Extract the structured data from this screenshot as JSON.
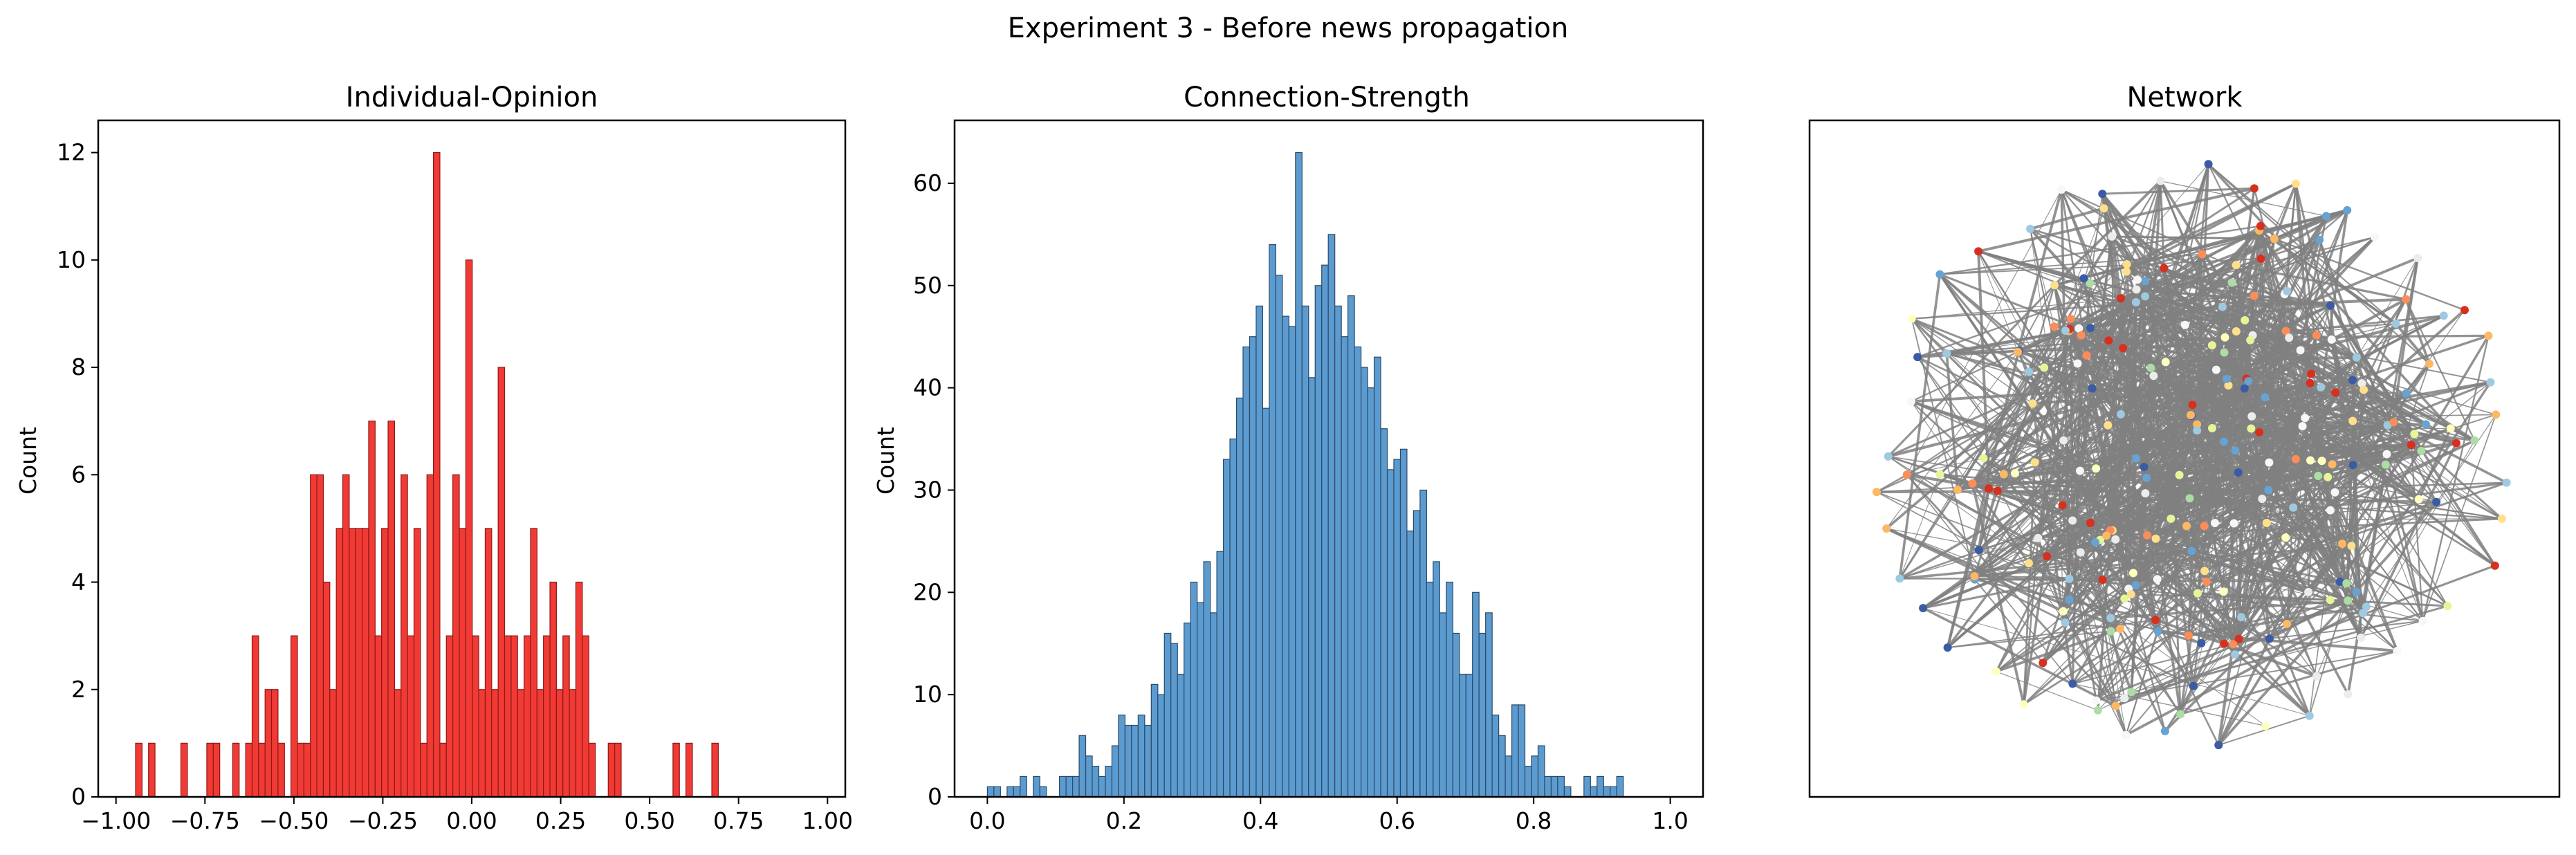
{
  "suptitle": "Experiment 3 - Before news propagation",
  "chart_data": [
    {
      "type": "histogram",
      "title": "Individual-Opinion",
      "xlabel": "",
      "ylabel": "Count",
      "xlim": [
        -1.05,
        1.05
      ],
      "ylim": [
        0,
        12.6
      ],
      "xticks": [
        -1.0,
        -0.75,
        -0.5,
        -0.25,
        0.0,
        0.25,
        0.5,
        0.75,
        1.0
      ],
      "xtick_labels": [
        "−1.00",
        "−0.75",
        "−0.50",
        "−0.25",
        "0.00",
        "0.25",
        "0.50",
        "0.75",
        "1.00"
      ],
      "yticks": [
        0,
        2,
        4,
        6,
        8,
        10,
        12
      ],
      "ytick_labels": [
        "0",
        "2",
        "4",
        "6",
        "8",
        "10",
        "12"
      ],
      "bin_start": -0.945,
      "bin_width": 0.0182,
      "values": [
        1,
        0,
        1,
        0,
        0,
        0,
        0,
        1,
        0,
        0,
        0,
        1,
        1,
        0,
        0,
        1,
        0,
        1,
        3,
        1,
        2,
        2,
        1,
        0,
        3,
        1,
        1,
        6,
        6,
        4,
        2,
        5,
        6,
        5,
        5,
        5,
        7,
        3,
        5,
        7,
        2,
        6,
        3,
        5,
        1,
        6,
        12,
        1,
        3,
        6,
        5,
        10,
        3,
        2,
        5,
        2,
        8,
        3,
        3,
        2,
        3,
        5,
        2,
        3,
        4,
        2,
        3,
        2,
        4,
        3,
        1,
        0,
        0,
        1,
        1,
        0,
        0,
        0,
        0,
        0,
        0,
        0,
        0,
        1,
        0,
        1,
        0,
        0,
        0,
        1
      ],
      "colors": {
        "fill": "#f23a35",
        "edge": "#8b1a17"
      }
    },
    {
      "type": "histogram",
      "title": "Connection-Strength",
      "xlabel": "",
      "ylabel": "Count",
      "xlim": [
        -0.048,
        1.048
      ],
      "ylim": [
        0,
        66.15
      ],
      "xticks": [
        0.0,
        0.2,
        0.4,
        0.6,
        0.8,
        1.0
      ],
      "xtick_labels": [
        "0.0",
        "0.2",
        "0.4",
        "0.6",
        "0.8",
        "1.0"
      ],
      "yticks": [
        0,
        10,
        20,
        30,
        40,
        50,
        60
      ],
      "ytick_labels": [
        "0",
        "10",
        "20",
        "30",
        "40",
        "50",
        "60"
      ],
      "bin_start": 0.0,
      "bin_width": 0.0096,
      "values": [
        1,
        1,
        0,
        1,
        1,
        2,
        0,
        2,
        1,
        0,
        0,
        2,
        2,
        2,
        6,
        4,
        3,
        2,
        3,
        5,
        8,
        7,
        7,
        8,
        7,
        11,
        10,
        16,
        15,
        12,
        17,
        21,
        19,
        23,
        18,
        24,
        33,
        35,
        39,
        44,
        45,
        48,
        38,
        54,
        51,
        47,
        46,
        63,
        48,
        41,
        50,
        52,
        55,
        48,
        45,
        49,
        44,
        42,
        40,
        43,
        36,
        32,
        33,
        34,
        26,
        28,
        30,
        21,
        23,
        18,
        21,
        16,
        12,
        12,
        20,
        16,
        18,
        8,
        6,
        4,
        9,
        9,
        3,
        4,
        5,
        2,
        2,
        2,
        1,
        0,
        0,
        2,
        1,
        2,
        1,
        1,
        2,
        0,
        0,
        0
      ],
      "colors": {
        "fill": "#5c9bd0",
        "edge": "#2b4a66"
      }
    },
    {
      "type": "network",
      "title": "Network",
      "colors": {
        "edge": "#808080",
        "nodes": [
          "#d7301f",
          "#fc8d59",
          "#fdb863",
          "#fee08b",
          "#ffffbf",
          "#e6f598",
          "#abdda4",
          "#9ecae1",
          "#66a3d2",
          "#3b5ba5",
          "#f7f7f7",
          "#ececec"
        ]
      }
    }
  ]
}
